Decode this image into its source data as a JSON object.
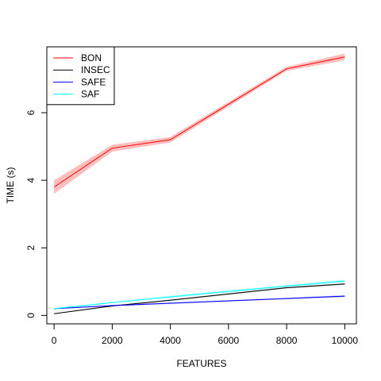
{
  "chart_data": {
    "type": "line",
    "title": "",
    "xlabel": "FEATURES",
    "ylabel": "TIME (s)",
    "xlim": [
      -250,
      10400
    ],
    "ylim": [
      -0.25,
      7.95
    ],
    "xticks": [
      0,
      2000,
      4000,
      6000,
      8000,
      10000
    ],
    "yticks": [
      0,
      2,
      4,
      6
    ],
    "x": [
      0,
      2000,
      4000,
      8000,
      10000
    ],
    "legend_position": "top-left",
    "grid": false,
    "series": [
      {
        "name": "BON",
        "color": "#ff0000",
        "band_color": "#ffb3b3",
        "values": [
          3.8,
          4.95,
          5.2,
          7.3,
          7.65
        ],
        "lower": [
          3.6,
          4.85,
          5.12,
          7.24,
          7.55
        ],
        "upper": [
          4.0,
          5.05,
          5.28,
          7.36,
          7.75
        ]
      },
      {
        "name": "INSEC",
        "color": "#000000",
        "band_color": "#b3b3b3",
        "values": [
          0.05,
          0.28,
          0.45,
          0.82,
          0.93
        ],
        "lower": [
          0.04,
          0.26,
          0.43,
          0.8,
          0.91
        ],
        "upper": [
          0.06,
          0.3,
          0.47,
          0.84,
          0.95
        ]
      },
      {
        "name": "SAFE",
        "color": "#0000ff",
        "band_color": "#b3b3ff",
        "values": [
          0.2,
          0.29,
          0.36,
          0.5,
          0.57
        ],
        "lower": [
          0.19,
          0.27,
          0.34,
          0.48,
          0.54
        ],
        "upper": [
          0.21,
          0.31,
          0.38,
          0.52,
          0.6
        ]
      },
      {
        "name": "SAF",
        "color": "#00ffff",
        "band_color": "#b3ffff",
        "values": [
          0.2,
          0.38,
          0.55,
          0.87,
          1.02
        ],
        "lower": [
          0.18,
          0.36,
          0.52,
          0.84,
          0.98
        ],
        "upper": [
          0.22,
          0.4,
          0.58,
          0.9,
          1.06
        ]
      }
    ]
  }
}
